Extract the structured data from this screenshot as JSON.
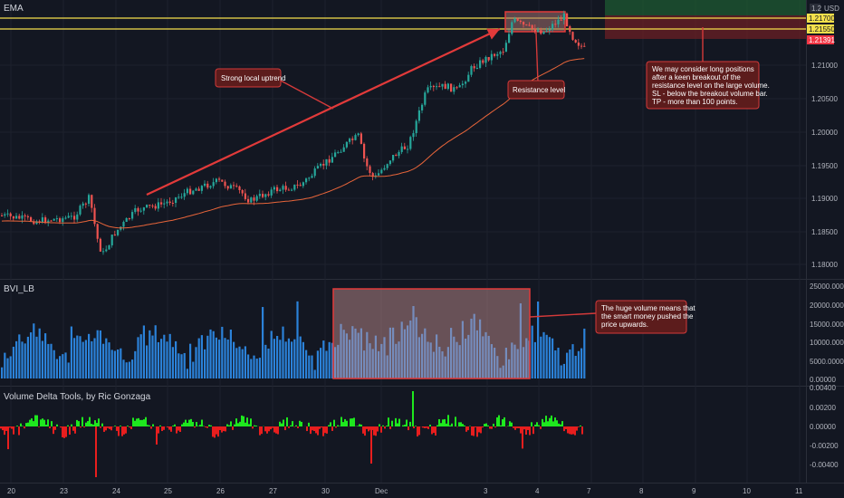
{
  "panes": {
    "price": {
      "title": "EMA",
      "currency": "USD",
      "scale_mode": "1.2"
    },
    "volume": {
      "title": "BVI_LB"
    },
    "delta": {
      "title": "Volume Delta Tools, by Ric Gonzaga"
    }
  },
  "price_axis": {
    "ticks": [
      "1.21000",
      "1.20500",
      "1.20000",
      "1.19500",
      "1.19000",
      "1.18500",
      "1.18000"
    ],
    "badges": [
      {
        "text": "1.21700",
        "bg": "#f5e04b",
        "fg": "#131722"
      },
      {
        "text": "1.21550",
        "bg": "#f5e04b",
        "fg": "#131722"
      },
      {
        "text": "1.21391",
        "bg": "#f23645",
        "fg": "#ffffff"
      }
    ]
  },
  "volume_axis": {
    "ticks": [
      "25000.00000",
      "20000.00000",
      "15000.00000",
      "10000.00000",
      "5000.00000",
      "0.00000"
    ]
  },
  "delta_axis": {
    "ticks": [
      "0.00400",
      "0.00200",
      "0.00000",
      "-0.00200",
      "-0.00400"
    ]
  },
  "time_axis": {
    "labels": [
      "20",
      "23",
      "24",
      "25",
      "26",
      "27",
      "30",
      "Dec",
      "3",
      "4",
      "7",
      "8",
      "9",
      "10",
      "11"
    ]
  },
  "annotations": {
    "uptrend": "Strong local uptrend",
    "resistance": "Resistance level",
    "plan": [
      "We may consider long positions",
      "after a keen breakout of the",
      "resistance level on the large volume.",
      "SL - below the breakout volume bar.",
      "TP - more than 100 points."
    ],
    "volume_note": [
      "The huge volume means that",
      "the smart money pushed the",
      "price upwards."
    ]
  },
  "colors": {
    "background": "#131722",
    "bull": "#26a69a",
    "bear": "#ef5350",
    "ema": "#e8653a",
    "resistance": "#f5e04b",
    "volume": "#2b82d9",
    "delta_up": "#1ee81e",
    "delta_down": "#e81e1e",
    "note_bg": "#5c1c1c",
    "note_border": "#d43a3a"
  }
}
